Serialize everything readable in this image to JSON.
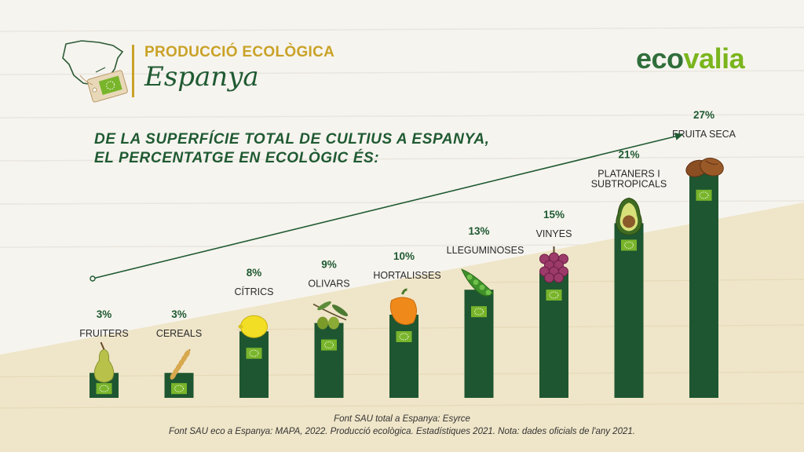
{
  "header": {
    "title": "PRODUCCIÓ ECOLÒGICA",
    "subtitle": "Espanya",
    "brand_part1": "eco",
    "brand_part2": "valia",
    "headline_line1": "DE LA SUPERFÍCIE TOTAL DE CULTIUS A ESPANYA,",
    "headline_line2": "EL PERCENTATGE EN ECOLÒGIC ÉS:"
  },
  "sources": {
    "line1": "Font SAU total a Espanya: Esyrce",
    "line2": "Font SAU eco a Espanya: MAPA, 2022. Producció ecològica. Estadístiques 2021. Nota: dades oficials de l'any 2021."
  },
  "colors": {
    "bar": "#1e5631",
    "accent": "#c9a227",
    "brand_dark": "#2f6e3a",
    "brand_light": "#7ab51d",
    "eu_leaf": "#79b52b",
    "cream": "#efe5c8"
  },
  "chart_data": {
    "type": "bar",
    "categories": [
      "FRUITERS",
      "CEREALS",
      "CÍTRICS",
      "OLIVARS",
      "HORTALISSES",
      "LLEGUMINOSES",
      "VINYES",
      "PLATANERS I SUBTROPICALS",
      "FRUITA SECA"
    ],
    "category_lines": [
      [
        "FRUITERS"
      ],
      [
        "CEREALS"
      ],
      [
        "CÍTRICS"
      ],
      [
        "OLIVARS"
      ],
      [
        "HORTALISSES"
      ],
      [
        "LLEGUMINOSES"
      ],
      [
        "VINYES"
      ],
      [
        "PLATANERS I",
        "SUBTROPICALS"
      ],
      [
        "FRUITA SECA"
      ]
    ],
    "values": [
      3,
      3,
      8,
      9,
      10,
      13,
      15,
      21,
      27
    ],
    "value_labels": [
      "3%",
      "3%",
      "8%",
      "9%",
      "10%",
      "13%",
      "15%",
      "21%",
      "27%"
    ],
    "icons": [
      "pear-icon",
      "wheat-icon",
      "lemon-icon",
      "olive-icon",
      "pepper-icon",
      "pea-pod-icon",
      "grapes-icon",
      "avocado-icon",
      "almond-icon"
    ],
    "unit": "%",
    "ylim": [
      0,
      30
    ],
    "legend": "none",
    "grid": false,
    "trend_arrow": true
  }
}
